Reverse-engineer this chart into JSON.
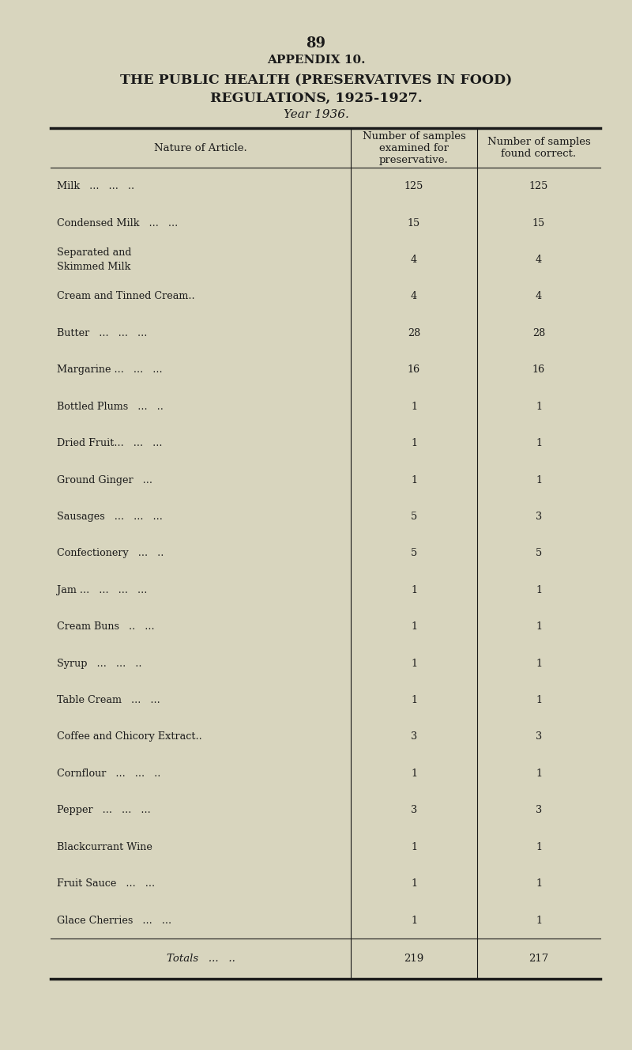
{
  "page_number": "89",
  "appendix_title": "APPENDIX 10.",
  "main_title_line1": "THE PUBLIC HEALTH (PRESERVATIVES IN FOOD)",
  "main_title_line2": "REGULATIONS, 1925-1927.",
  "year_line": "Year 1936.",
  "col1_header": "Nature of Article.",
  "col2_header": "Number of samples\nexamined for\npreservative.",
  "col3_header": "Number of samples\nfound correct.",
  "rows": [
    [
      "Milk   ...   ...   ..",
      "125",
      "125"
    ],
    [
      "Condensed Milk   ...   ...",
      "15",
      "15"
    ],
    [
      "Separated and\n              Skimmed Milk",
      "4",
      "4"
    ],
    [
      "Cream and Tinned Cream..",
      "4",
      "4"
    ],
    [
      "Butter   ...   ...   ...",
      "28",
      "28"
    ],
    [
      "Margarine ...   ...   ...",
      "16",
      "16"
    ],
    [
      "Bottled Plums   ...   ..",
      "1",
      "1"
    ],
    [
      "Dried Fruit...   ...   ...",
      "1",
      "1"
    ],
    [
      "Ground Ginger   ...",
      "1",
      "1"
    ],
    [
      "Sausages   ...   ...   ...",
      "5",
      "3"
    ],
    [
      "Confectionery   ...   ..",
      "5",
      "5"
    ],
    [
      "Jam ...   ...   ...   ...",
      "1",
      "1"
    ],
    [
      "Cream Buns   ..   ...",
      "1",
      "1"
    ],
    [
      "Syrup   ...   ...   ..",
      "1",
      "1"
    ],
    [
      "Table Cream   ...   ...",
      "1",
      "1"
    ],
    [
      "Coffee and Chicory Extract..",
      "3",
      "3"
    ],
    [
      "Cornflour   ...   ...   ..",
      "1",
      "1"
    ],
    [
      "Pepper   ...   ...   ...",
      "3",
      "3"
    ],
    [
      "Blackcurrant Wine",
      "1",
      "1"
    ],
    [
      "Fruit Sauce   ...   ...",
      "1",
      "1"
    ],
    [
      "Glace Cherries   ...   ...",
      "1",
      "1"
    ]
  ],
  "totals_label": "Totals   ...   ..",
  "totals_col2": "219",
  "totals_col3": "217",
  "bg_color": "#d8d5be",
  "text_color": "#1a1a1a",
  "line_color": "#1a1a1a"
}
